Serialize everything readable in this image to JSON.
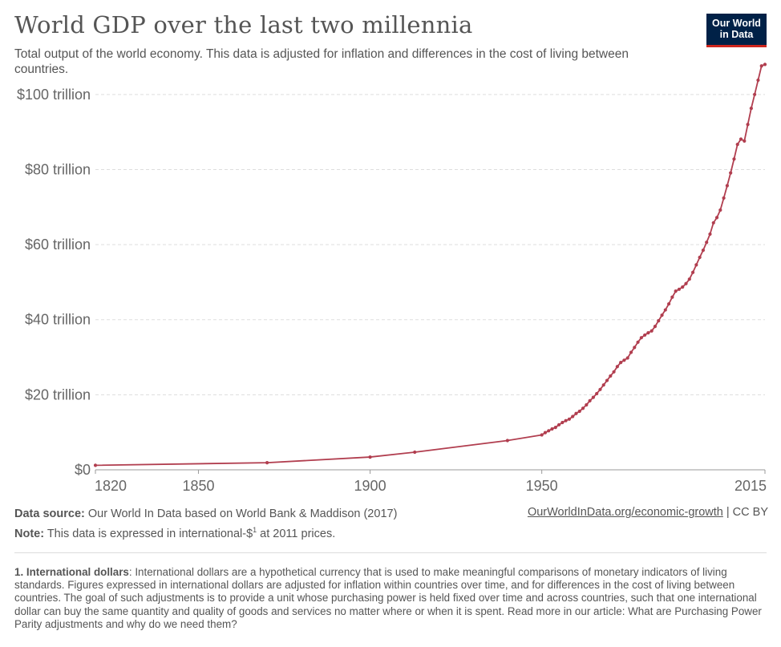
{
  "header": {
    "title": "World GDP over the last two millennia",
    "subtitle": "Total output of the world economy. This data is adjusted for inflation and differences in the cost of living between countries.",
    "logo_line1": "Our World",
    "logo_line2": "in Data"
  },
  "colors": {
    "series": "#b13e4f",
    "logo_bg": "#002147",
    "logo_accent": "#ce261e"
  },
  "chart_data": {
    "type": "line",
    "title": "World GDP over the last two millennia",
    "xlabel": "",
    "ylabel": "",
    "xlim": [
      1820,
      2015
    ],
    "ylim": [
      0,
      110
    ],
    "grid": true,
    "y_unit": "trillion international-$ (2011 prices)",
    "yticks": [
      {
        "value": 0,
        "label": "$0"
      },
      {
        "value": 20,
        "label": "$20 trillion"
      },
      {
        "value": 40,
        "label": "$40 trillion"
      },
      {
        "value": 60,
        "label": "$60 trillion"
      },
      {
        "value": 80,
        "label": "$80 trillion"
      },
      {
        "value": 100,
        "label": "$100 trillion"
      }
    ],
    "xticks": [
      {
        "value": 1820,
        "label": "1820"
      },
      {
        "value": 1850,
        "label": "1850"
      },
      {
        "value": 1900,
        "label": "1900"
      },
      {
        "value": 1950,
        "label": "1950"
      },
      {
        "value": 2015,
        "label": "2015"
      }
    ],
    "series": [
      {
        "x": [
          1820,
          1870,
          1900,
          1913,
          1940,
          1950,
          1951,
          1952,
          1953,
          1954,
          1955,
          1956,
          1957,
          1958,
          1959,
          1960,
          1961,
          1962,
          1963,
          1964,
          1965,
          1966,
          1967,
          1968,
          1969,
          1970,
          1971,
          1972,
          1973,
          1974,
          1975,
          1976,
          1977,
          1978,
          1979,
          1980,
          1981,
          1982,
          1983,
          1984,
          1985,
          1986,
          1987,
          1988,
          1989,
          1990,
          1991,
          1992,
          1993,
          1994,
          1995,
          1996,
          1997,
          1998,
          1999,
          2000,
          2001,
          2002,
          2003,
          2004,
          2005,
          2006,
          2007,
          2008,
          2009,
          2010,
          2011,
          2012,
          2013,
          2014,
          2015
        ],
        "values": [
          1.2,
          1.9,
          3.4,
          4.7,
          7.8,
          9.3,
          9.9,
          10.4,
          10.9,
          11.3,
          12.0,
          12.6,
          13.1,
          13.5,
          14.2,
          15.0,
          15.6,
          16.4,
          17.3,
          18.4,
          19.3,
          20.3,
          21.4,
          22.6,
          23.8,
          25.0,
          26.1,
          27.5,
          28.6,
          29.2,
          29.8,
          31.3,
          32.6,
          34.0,
          35.2,
          35.9,
          36.5,
          37.0,
          38.2,
          39.7,
          41.2,
          42.6,
          44.2,
          46.0,
          47.6,
          48.1,
          48.7,
          49.6,
          50.8,
          52.6,
          54.6,
          56.6,
          58.5,
          60.6,
          62.8,
          65.8,
          67.2,
          69.2,
          72.4,
          75.7,
          79.1,
          82.8,
          86.7,
          88.1,
          87.6,
          92.0,
          96.3,
          100.0,
          103.8,
          107.6,
          108.0
        ]
      }
    ]
  },
  "footer": {
    "source_label": "Data source:",
    "source_text": " Our World In Data based on World Bank & Maddison (2017)",
    "note_label": "Note:",
    "note_text": " This data is expressed in international-$",
    "note_sup": "1",
    "note_tail": " at 2011 prices.",
    "url": "OurWorldInData.org/economic-growth",
    "license": " | CC BY"
  },
  "footnote": {
    "label": "1. International dollars",
    "text": ": International dollars are a hypothetical currency that is used to make meaningful comparisons of monetary indicators of living standards. Figures expressed in international dollars are adjusted for inflation within countries over time, and for differences in the cost of living between countries. The goal of such adjustments is to provide a unit whose purchasing power is held fixed over time and across countries, such that one international dollar can buy the same quantity and quality of goods and services no matter where or when it is spent. Read more in our article: What are Purchasing Power Parity adjustments and why do we need them?"
  }
}
